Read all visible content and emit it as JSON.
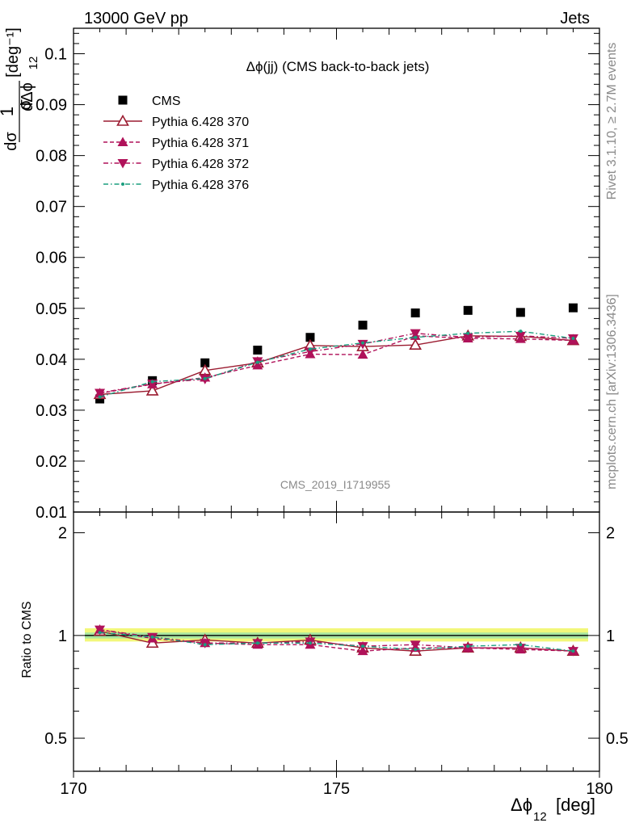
{
  "header": {
    "left": "13000 GeV pp",
    "right": "Jets"
  },
  "side_text": {
    "rivet": "Rivet 3.1.10, ≥ 2.7M events",
    "mcplots": "mcplots.cern.ch [arXiv:1306.3436]"
  },
  "watermark": "CMS_2019_I1719955",
  "chart_data": [
    {
      "type": "scatter",
      "title": "Δϕ(jj) (CMS back-to-back jets)",
      "ylabel": "1/σ dσ/dΔϕ12 [deg⁻¹]",
      "xlim": [
        170,
        180
      ],
      "ylim": [
        0.01,
        0.105
      ],
      "y_ticks": [
        0.01,
        0.02,
        0.03,
        0.04,
        0.05,
        0.06,
        0.07,
        0.08,
        0.09,
        0.1
      ],
      "y_tick_labels": [
        "0.01",
        "0.02",
        "0.03",
        "0.04",
        "0.05",
        "0.06",
        "0.07",
        "0.08",
        "0.09",
        "0.1"
      ],
      "legend_position": "top-left",
      "x": [
        170.5,
        171.5,
        172.5,
        173.5,
        174.5,
        175.5,
        176.5,
        177.5,
        178.5,
        179.5
      ],
      "series": [
        {
          "name": "CMS",
          "color": "#000000",
          "marker": "square",
          "line": "none",
          "values": [
            0.0322,
            0.0358,
            0.0393,
            0.0418,
            0.0443,
            0.0467,
            0.0491,
            0.0496,
            0.0492,
            0.0501
          ]
        },
        {
          "name": "Pythia 6.428 370",
          "color": "#9b1b30",
          "marker": "triangle-open",
          "line": "solid",
          "values": [
            0.0331,
            0.0338,
            0.0378,
            0.0393,
            0.0427,
            0.0425,
            0.0428,
            0.0446,
            0.0445,
            0.0437
          ]
        },
        {
          "name": "Pythia 6.428 371",
          "color": "#b0125a",
          "marker": "triangle-up",
          "line": "dashed",
          "values": [
            0.0333,
            0.0351,
            0.0364,
            0.0388,
            0.041,
            0.0409,
            0.0446,
            0.0441,
            0.044,
            0.0437
          ]
        },
        {
          "name": "Pythia 6.428 372",
          "color": "#b0125a",
          "marker": "triangle-down",
          "line": "dashdot",
          "values": [
            0.0334,
            0.0352,
            0.0361,
            0.0396,
            0.0415,
            0.043,
            0.0451,
            0.0443,
            0.0446,
            0.0441
          ]
        },
        {
          "name": "Pythia 6.428 376",
          "color": "#1a9e7e",
          "marker": "dot",
          "line": "dashdot",
          "values": [
            0.0326,
            0.0356,
            0.0362,
            0.0394,
            0.042,
            0.0432,
            0.0443,
            0.0451,
            0.0455,
            0.0441
          ]
        }
      ]
    },
    {
      "type": "scatter",
      "title": "",
      "ylabel": "Ratio to CMS",
      "xlabel": "Δϕ12 [deg]",
      "xlim": [
        170,
        180
      ],
      "ylim": [
        0.4,
        2.3
      ],
      "log_y": true,
      "x_ticks": [
        170,
        175,
        180
      ],
      "x_tick_labels": [
        "170",
        "175",
        "180"
      ],
      "y_ticks": [
        0.5,
        1,
        2
      ],
      "y_tick_labels": [
        "0.5",
        "1",
        "2"
      ],
      "band": {
        "inner": [
          0.98,
          1.02
        ],
        "outer": [
          0.96,
          1.05
        ],
        "inner_color": "#a8e6a0",
        "outer_color": "#f2f77a"
      },
      "x": [
        170.5,
        171.5,
        172.5,
        173.5,
        174.5,
        175.5,
        176.5,
        177.5,
        178.5,
        179.5
      ],
      "series": [
        {
          "name": "Pythia 6.428 370",
          "color": "#9b1b30",
          "marker": "triangle-open",
          "line": "solid",
          "values": [
            1.03,
            0.95,
            0.97,
            0.95,
            0.97,
            0.92,
            0.9,
            0.92,
            0.92,
            0.9
          ]
        },
        {
          "name": "Pythia 6.428 371",
          "color": "#b0125a",
          "marker": "triangle-up",
          "line": "dashed",
          "values": [
            1.04,
            0.98,
            0.95,
            0.94,
            0.94,
            0.9,
            0.92,
            0.92,
            0.91,
            0.9
          ]
        },
        {
          "name": "Pythia 6.428 372",
          "color": "#b0125a",
          "marker": "triangle-down",
          "line": "dashdot",
          "values": [
            1.04,
            0.99,
            0.95,
            0.95,
            0.96,
            0.93,
            0.94,
            0.92,
            0.92,
            0.9
          ]
        },
        {
          "name": "Pythia 6.428 376",
          "color": "#1a9e7e",
          "marker": "dot",
          "line": "dashdot",
          "values": [
            1.02,
            0.99,
            0.94,
            0.95,
            0.95,
            0.93,
            0.91,
            0.93,
            0.94,
            0.9
          ]
        }
      ]
    }
  ]
}
